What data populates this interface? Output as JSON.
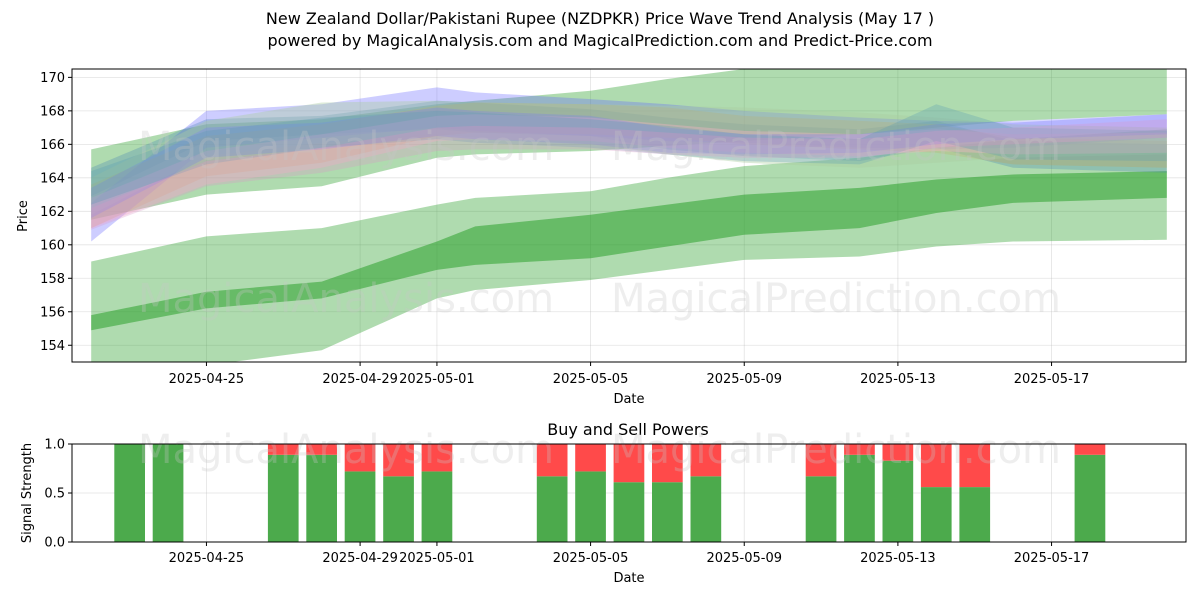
{
  "title": {
    "line1": "New Zealand Dollar/Pakistani Rupee (NZDPKR) Price Wave Trend Analysis (May 17 )",
    "line2": "powered by MagicalAnalysis.com and MagicalPrediction.com and Predict-Price.com"
  },
  "watermarks": [
    "MagicalAnalysis.com",
    "MagicalPrediction.com"
  ],
  "chart_data": [
    {
      "type": "area",
      "title": "",
      "xlabel": "Date",
      "ylabel": "Price",
      "x_ticks": [
        "2025-04-25",
        "2025-04-29",
        "2025-05-01",
        "2025-05-05",
        "2025-05-09",
        "2025-05-13",
        "2025-05-17"
      ],
      "y_ticks": [
        154,
        156,
        158,
        160,
        162,
        164,
        166,
        168,
        170
      ],
      "xlim": [
        "2025-04-21T12:00",
        "2025-05-20T12:00"
      ],
      "ylim": [
        153,
        170.5
      ],
      "grid": true,
      "dates": [
        "2025-04-22",
        "2025-04-25",
        "2025-04-28",
        "2025-05-01",
        "2025-05-02",
        "2025-05-05",
        "2025-05-07",
        "2025-05-09",
        "2025-05-12",
        "2025-05-14",
        "2025-05-16",
        "2025-05-20"
      ],
      "green_bands": [
        {
          "name": "",
          "color": "#2ca02c",
          "alpha": 0.38,
          "upper": [
            159.0,
            160.5,
            161.0,
            162.4,
            162.8,
            163.2,
            164.0,
            164.7,
            165.2,
            165.8,
            166.3,
            166.9
          ],
          "lower": [
            152.5,
            152.8,
            153.7,
            156.8,
            157.3,
            157.9,
            158.5,
            159.1,
            159.3,
            159.9,
            160.2,
            160.3
          ]
        },
        {
          "name": "",
          "color": "#2ca02c",
          "alpha": 0.55,
          "upper": [
            155.8,
            157.2,
            157.8,
            160.2,
            161.1,
            161.8,
            162.4,
            163.0,
            163.4,
            163.9,
            164.2,
            164.4
          ],
          "lower": [
            154.9,
            156.2,
            156.8,
            158.5,
            158.8,
            159.2,
            159.9,
            160.6,
            161.0,
            161.9,
            162.5,
            162.8
          ]
        },
        {
          "name": "",
          "color": "#2ca02c",
          "alpha": 0.38,
          "upper": [
            165.7,
            167.2,
            167.5,
            168.4,
            168.6,
            169.2,
            169.9,
            170.5,
            170.5,
            170.5,
            170.5,
            170.5
          ],
          "lower": [
            161.5,
            163.0,
            163.5,
            165.2,
            165.4,
            165.6,
            165.9,
            166.2,
            166.6,
            167.0,
            167.4,
            167.8
          ]
        }
      ],
      "wave_bands": [
        {
          "name": "",
          "color": "#6464ff",
          "alpha": 0.32,
          "upper": [
            162.5,
            168.0,
            168.4,
            169.4,
            169.1,
            168.7,
            168.4,
            168.0,
            167.6,
            167.4,
            167.3,
            167.8
          ],
          "lower": [
            160.2,
            165.8,
            166.4,
            167.0,
            166.8,
            166.5,
            166.2,
            166.1,
            165.8,
            165.7,
            165.8,
            166.4
          ]
        },
        {
          "name": "",
          "color": "#4682b4",
          "alpha": 0.3,
          "upper": [
            164.6,
            167.5,
            167.7,
            168.6,
            168.5,
            168.1,
            167.6,
            167.2,
            166.9,
            167.4,
            166.2,
            166.0
          ],
          "lower": [
            162.9,
            166.2,
            166.6,
            166.9,
            166.7,
            166.5,
            165.7,
            165.3,
            165.0,
            165.8,
            164.6,
            164.3
          ]
        },
        {
          "name": "",
          "color": "#c8a050",
          "alpha": 0.3,
          "upper": [
            163.6,
            166.5,
            167.2,
            168.3,
            168.5,
            168.4,
            168.2,
            167.7,
            167.4,
            167.2,
            166.4,
            166.2
          ],
          "lower": [
            161.0,
            164.1,
            164.9,
            166.5,
            166.7,
            166.6,
            166.4,
            166.0,
            165.7,
            165.5,
            164.8,
            164.6
          ]
        },
        {
          "name": "",
          "color": "#aacca0",
          "alpha": 0.4,
          "upper": [
            164.0,
            167.4,
            168.5,
            168.6,
            168.5,
            168.4,
            168.3,
            168.2,
            167.9,
            167.6,
            167.2,
            167.0
          ],
          "lower": [
            161.8,
            165.3,
            166.1,
            166.6,
            166.4,
            166.0,
            165.4,
            164.9,
            164.6,
            164.9,
            165.2,
            165.4
          ]
        },
        {
          "name": "",
          "color": "#ffb4c8",
          "alpha": 0.35,
          "upper": [
            162.8,
            165.6,
            166.6,
            167.7,
            167.8,
            167.6,
            167.2,
            166.8,
            166.6,
            166.9,
            166.6,
            166.7
          ],
          "lower": [
            161.0,
            163.6,
            164.6,
            166.2,
            166.3,
            166.2,
            165.8,
            165.5,
            165.3,
            165.6,
            165.4,
            165.5
          ]
        },
        {
          "name": "",
          "color": "#7878ff",
          "alpha": 0.28,
          "upper": [
            163.4,
            167.0,
            167.3,
            168.2,
            168.0,
            167.7,
            167.0,
            166.6,
            166.6,
            167.2,
            167.4,
            167.8
          ],
          "lower": [
            161.6,
            165.2,
            165.7,
            166.5,
            166.3,
            166.0,
            165.5,
            165.4,
            165.5,
            166.0,
            166.3,
            166.6
          ]
        },
        {
          "name": "",
          "color": "#5a9ab4",
          "alpha": 0.3,
          "upper": [
            164.4,
            166.8,
            167.6,
            168.0,
            167.9,
            167.5,
            167.1,
            166.6,
            166.3,
            168.4,
            167.0,
            166.8
          ],
          "lower": [
            162.4,
            164.8,
            165.8,
            166.3,
            166.1,
            165.8,
            165.4,
            165.0,
            164.8,
            166.2,
            165.1,
            165.0
          ]
        },
        {
          "name": "",
          "color": "#dc96c8",
          "alpha": 0.3,
          "upper": [
            162.2,
            165.0,
            165.8,
            167.0,
            167.1,
            167.0,
            166.7,
            166.4,
            166.3,
            166.8,
            167.0,
            167.5
          ],
          "lower": [
            160.9,
            163.5,
            164.3,
            165.6,
            165.7,
            165.7,
            165.4,
            165.2,
            165.2,
            165.8,
            166.0,
            166.4
          ]
        }
      ]
    },
    {
      "type": "bar",
      "title": "Buy and Sell Powers",
      "xlabel": "Date",
      "ylabel": "Signal Strength",
      "y_ticks": [
        0.0,
        0.5,
        1.0
      ],
      "ylim": [
        0,
        1
      ],
      "buy_color": "#4caa4c",
      "sell_color": "#ff4a4a",
      "bars": [
        {
          "date": "2025-04-23",
          "buy": 1.0,
          "sell": 0.0
        },
        {
          "date": "2025-04-24",
          "buy": 1.0,
          "sell": 0.0
        },
        {
          "date": "2025-04-27",
          "buy": 0.89,
          "sell": 0.11
        },
        {
          "date": "2025-04-28",
          "buy": 0.89,
          "sell": 0.11
        },
        {
          "date": "2025-04-29",
          "buy": 0.72,
          "sell": 0.28
        },
        {
          "date": "2025-04-30",
          "buy": 0.67,
          "sell": 0.33
        },
        {
          "date": "2025-05-01",
          "buy": 0.72,
          "sell": 0.28
        },
        {
          "date": "2025-05-04",
          "buy": 0.67,
          "sell": 0.33
        },
        {
          "date": "2025-05-05",
          "buy": 0.72,
          "sell": 0.28
        },
        {
          "date": "2025-05-06",
          "buy": 0.61,
          "sell": 0.39
        },
        {
          "date": "2025-05-07",
          "buy": 0.61,
          "sell": 0.39
        },
        {
          "date": "2025-05-08",
          "buy": 0.67,
          "sell": 0.33
        },
        {
          "date": "2025-05-11",
          "buy": 0.67,
          "sell": 0.33
        },
        {
          "date": "2025-05-12",
          "buy": 0.89,
          "sell": 0.11
        },
        {
          "date": "2025-05-13",
          "buy": 0.83,
          "sell": 0.17
        },
        {
          "date": "2025-05-14",
          "buy": 0.56,
          "sell": 0.44
        },
        {
          "date": "2025-05-15",
          "buy": 0.56,
          "sell": 0.44
        },
        {
          "date": "2025-05-18",
          "buy": 0.89,
          "sell": 0.11
        }
      ]
    }
  ]
}
